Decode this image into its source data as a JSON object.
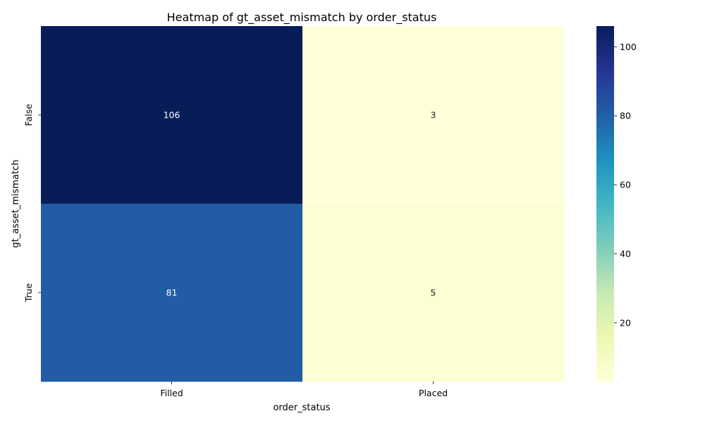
{
  "chart_data": {
    "type": "heatmap",
    "title": "Heatmap of gt_asset_mismatch by order_status",
    "xlabel": "order_status",
    "ylabel": "gt_asset_mismatch",
    "x_categories": [
      "Filled",
      "Placed"
    ],
    "y_categories": [
      "False",
      "True"
    ],
    "values": [
      [
        106,
        3
      ],
      [
        81,
        5
      ]
    ],
    "colormap": "YlGnBu",
    "vmin": 3,
    "vmax": 106,
    "colorbar_ticks": [
      20,
      40,
      60,
      80,
      100
    ],
    "annotate": true
  }
}
